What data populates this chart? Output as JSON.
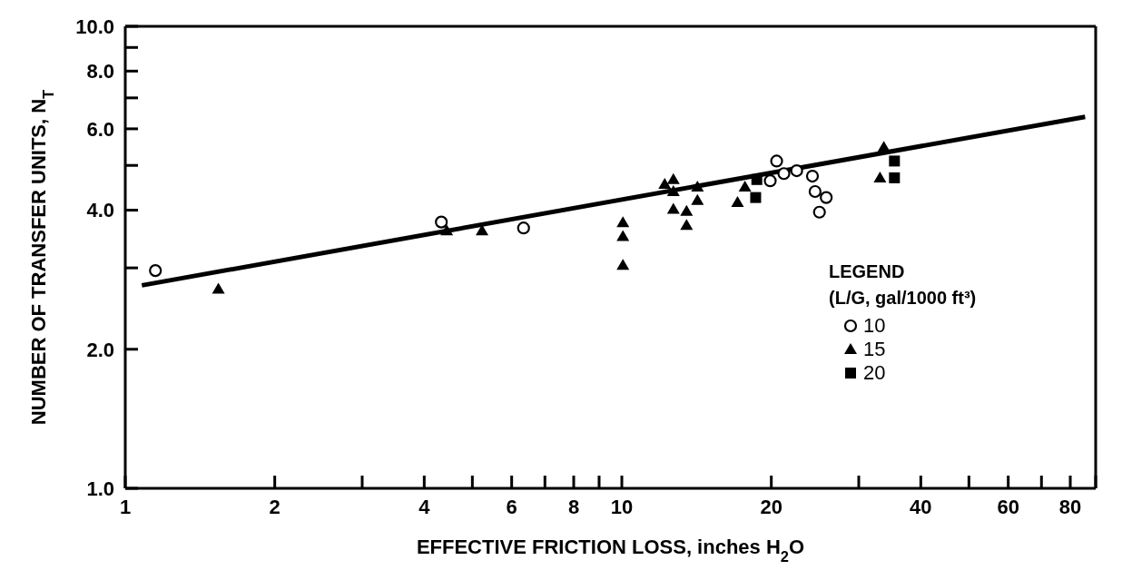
{
  "chart_data": {
    "type": "scatter",
    "xlabel": "EFFECTIVE FRICTION LOSS, inches H$_{2}$O",
    "ylabel": "NUMBER OF TRANSFER UNITS, N$_{T}$",
    "legend_title": "LEGEND\n(L/G, gal/1000 ft³)",
    "log": "xy",
    "grid": false,
    "legend": "bottom right",
    "xlim": [
      1,
      90
    ],
    "ylim": [
      1,
      10
    ],
    "xticks": [
      1,
      2,
      {
        "value": 3,
        "label": null
      },
      4,
      {
        "value": 5,
        "label": null
      },
      6,
      {
        "value": 7,
        "label": null
      },
      8,
      {
        "value": 9,
        "label": null
      },
      10,
      20,
      {
        "value": 30,
        "label": null
      },
      40,
      {
        "value": 50,
        "label": null
      },
      60,
      {
        "value": 70,
        "label": null
      },
      80,
      {
        "value": 90,
        "label": null
      }
    ],
    "yticks": [
      {
        "value": 1,
        "label": "1.0"
      },
      {
        "value": 2,
        "label": "2.0"
      },
      {
        "value": 3,
        "label": null
      },
      {
        "value": 4,
        "label": "4.0"
      },
      {
        "value": 5,
        "label": null
      },
      {
        "value": 6,
        "label": "6.0"
      },
      {
        "value": 7,
        "label": null
      },
      {
        "value": 8,
        "label": "8.0"
      },
      {
        "value": 9,
        "label": null
      },
      {
        "value": 10,
        "label": "10.0"
      }
    ],
    "series": [
      {
        "name": "10",
        "type": "scatter",
        "marker": "circle",
        "color": "#000000",
        "x": [
          1.15,
          4.33,
          6.34,
          20.5,
          19.9,
          21.2,
          22.5,
          24.2,
          24.5,
          25.8,
          25.0
        ],
        "values": [
          2.96,
          3.77,
          3.66,
          5.11,
          4.63,
          4.8,
          4.87,
          4.74,
          4.39,
          4.26,
          3.96
        ]
      },
      {
        "name": "15",
        "type": "scatter",
        "marker": "triangle",
        "color": "#000000",
        "x": [
          1.54,
          4.44,
          5.23,
          10.05,
          10.05,
          10.05,
          12.2,
          12.7,
          12.7,
          12.7,
          13.5,
          13.5,
          14.2,
          14.2,
          17.1,
          17.7,
          33.7,
          33.1
        ],
        "values": [
          2.7,
          3.61,
          3.61,
          3.76,
          3.51,
          3.04,
          4.55,
          4.66,
          4.39,
          4.02,
          3.98,
          3.71,
          4.49,
          4.2,
          4.16,
          4.49,
          5.47,
          4.7
        ]
      },
      {
        "name": "20",
        "type": "scatter",
        "marker": "square",
        "color": "#000000",
        "x": [
          18.7,
          18.6,
          35.4,
          35.4
        ],
        "values": [
          4.66,
          4.26,
          5.11,
          4.7
        ]
      },
      {
        "type": "line",
        "color": "#000000",
        "x": [
          1.08,
          85.7
        ],
        "values": [
          2.75,
          6.37
        ]
      }
    ]
  }
}
